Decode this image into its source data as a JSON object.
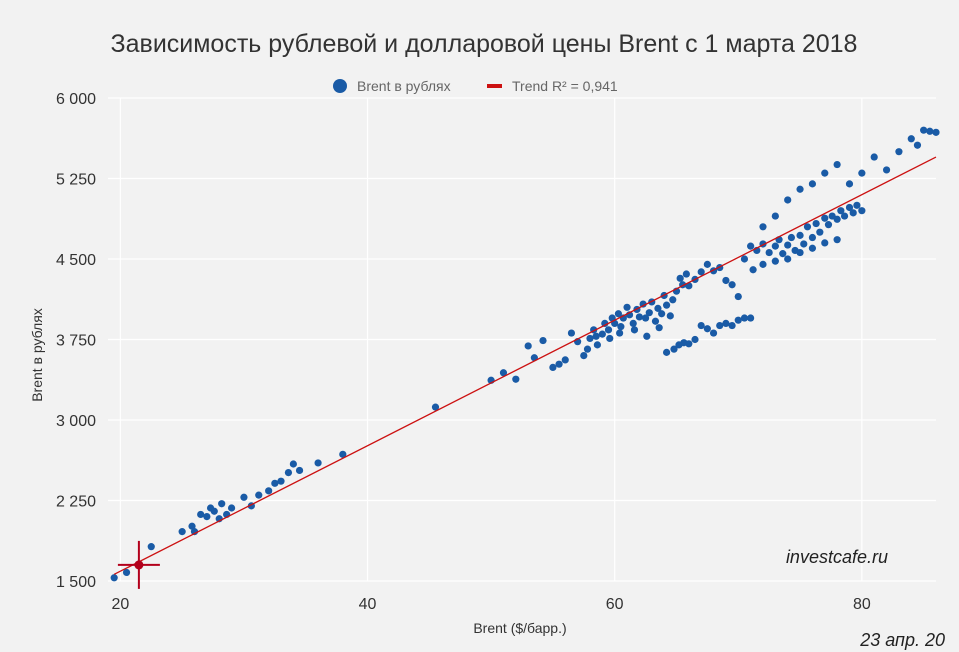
{
  "chart_data": {
    "type": "scatter",
    "title": "Зависимость рублевой и долларовой цены Brent с 1 марта 2018",
    "xlabel": "Brent ($/барр.)",
    "ylabel": "Brent в рублях",
    "xlim": [
      19,
      86
    ],
    "ylim": [
      1500,
      6000
    ],
    "x_ticks": [
      20,
      40,
      60,
      80
    ],
    "x_tick_labels": [
      "20",
      "40",
      "60",
      "80"
    ],
    "y_ticks": [
      1500,
      2250,
      3000,
      3750,
      4500,
      5250,
      6000
    ],
    "y_tick_labels": [
      "1 500",
      "2 250",
      "3 000",
      "3 750",
      "4 500",
      "5 250",
      "6 000"
    ],
    "grid": true,
    "legend_position": "top",
    "series": [
      {
        "name": "Brent в рублях",
        "color": "#1a5ba6",
        "points": [
          [
            19.5,
            1530
          ],
          [
            20.5,
            1580
          ],
          [
            21.5,
            1650
          ],
          [
            22.5,
            1820
          ],
          [
            25,
            1960
          ],
          [
            25.8,
            2010
          ],
          [
            26,
            1960
          ],
          [
            26.5,
            2120
          ],
          [
            27,
            2100
          ],
          [
            27.3,
            2180
          ],
          [
            27.6,
            2150
          ],
          [
            28,
            2080
          ],
          [
            28.2,
            2220
          ],
          [
            28.6,
            2120
          ],
          [
            29,
            2180
          ],
          [
            30,
            2280
          ],
          [
            30.6,
            2200
          ],
          [
            31.2,
            2300
          ],
          [
            32,
            2340
          ],
          [
            32.5,
            2410
          ],
          [
            33,
            2430
          ],
          [
            33.6,
            2510
          ],
          [
            34,
            2590
          ],
          [
            34.5,
            2530
          ],
          [
            36,
            2600
          ],
          [
            38,
            2680
          ],
          [
            45.5,
            3120
          ],
          [
            50,
            3370
          ],
          [
            51,
            3440
          ],
          [
            52,
            3380
          ],
          [
            53,
            3690
          ],
          [
            53.5,
            3580
          ],
          [
            54.2,
            3740
          ],
          [
            55,
            3490
          ],
          [
            55.5,
            3520
          ],
          [
            56,
            3560
          ],
          [
            56.5,
            3810
          ],
          [
            57,
            3730
          ],
          [
            57.5,
            3600
          ],
          [
            57.8,
            3660
          ],
          [
            58,
            3760
          ],
          [
            58.3,
            3840
          ],
          [
            58.6,
            3700
          ],
          [
            59,
            3800
          ],
          [
            59.2,
            3900
          ],
          [
            59.5,
            3840
          ],
          [
            59.8,
            3950
          ],
          [
            60,
            3900
          ],
          [
            60.3,
            3990
          ],
          [
            60.5,
            3870
          ],
          [
            60.7,
            3950
          ],
          [
            61,
            4050
          ],
          [
            61.2,
            3980
          ],
          [
            61.5,
            3900
          ],
          [
            61.8,
            4030
          ],
          [
            62,
            3960
          ],
          [
            62.3,
            4080
          ],
          [
            62.5,
            3950
          ],
          [
            62.8,
            4000
          ],
          [
            63,
            4100
          ],
          [
            63.3,
            3920
          ],
          [
            63.5,
            4040
          ],
          [
            63.8,
            3990
          ],
          [
            64,
            4160
          ],
          [
            64.2,
            4070
          ],
          [
            64.5,
            3970
          ],
          [
            64.7,
            4120
          ],
          [
            65,
            4200
          ],
          [
            65.3,
            4320
          ],
          [
            65.5,
            4260
          ],
          [
            65.8,
            4360
          ],
          [
            66,
            4250
          ],
          [
            66.5,
            4310
          ],
          [
            67,
            4380
          ],
          [
            67.5,
            4450
          ],
          [
            68,
            4390
          ],
          [
            68.5,
            4420
          ],
          [
            69,
            4300
          ],
          [
            69.5,
            4260
          ],
          [
            70,
            4150
          ],
          [
            64.2,
            3630
          ],
          [
            64.8,
            3660
          ],
          [
            65.2,
            3700
          ],
          [
            65.6,
            3720
          ],
          [
            66,
            3710
          ],
          [
            66.5,
            3750
          ],
          [
            67,
            3880
          ],
          [
            67.5,
            3850
          ],
          [
            68,
            3810
          ],
          [
            68.5,
            3880
          ],
          [
            69,
            3900
          ],
          [
            69.5,
            3880
          ],
          [
            70,
            3930
          ],
          [
            70.5,
            3950
          ],
          [
            71,
            3950
          ],
          [
            58.5,
            3780
          ],
          [
            59.6,
            3760
          ],
          [
            60.4,
            3810
          ],
          [
            61.6,
            3840
          ],
          [
            62.6,
            3780
          ],
          [
            63.6,
            3860
          ],
          [
            70.5,
            4500
          ],
          [
            71,
            4620
          ],
          [
            71.5,
            4580
          ],
          [
            72,
            4640
          ],
          [
            72.5,
            4560
          ],
          [
            73,
            4620
          ],
          [
            73.3,
            4680
          ],
          [
            73.6,
            4550
          ],
          [
            74,
            4630
          ],
          [
            74.3,
            4700
          ],
          [
            74.6,
            4580
          ],
          [
            75,
            4720
          ],
          [
            75.3,
            4640
          ],
          [
            75.6,
            4800
          ],
          [
            76,
            4700
          ],
          [
            76.3,
            4830
          ],
          [
            76.6,
            4750
          ],
          [
            77,
            4880
          ],
          [
            77.3,
            4820
          ],
          [
            77.6,
            4900
          ],
          [
            78,
            4870
          ],
          [
            78.3,
            4950
          ],
          [
            78.6,
            4900
          ],
          [
            79,
            4980
          ],
          [
            79.3,
            4930
          ],
          [
            79.6,
            5000
          ],
          [
            80,
            4950
          ],
          [
            71.2,
            4400
          ],
          [
            72,
            4450
          ],
          [
            73,
            4480
          ],
          [
            74,
            4500
          ],
          [
            75,
            4560
          ],
          [
            76,
            4600
          ],
          [
            77,
            4650
          ],
          [
            78,
            4680
          ],
          [
            72,
            4800
          ],
          [
            73,
            4900
          ],
          [
            74,
            5050
          ],
          [
            75,
            5150
          ],
          [
            76,
            5200
          ],
          [
            77,
            5300
          ],
          [
            78,
            5380
          ],
          [
            79,
            5200
          ],
          [
            80,
            5300
          ],
          [
            81,
            5450
          ],
          [
            82,
            5330
          ],
          [
            83,
            5500
          ],
          [
            84,
            5620
          ],
          [
            84.5,
            5560
          ],
          [
            85,
            5700
          ],
          [
            85.5,
            5690
          ],
          [
            86,
            5680
          ]
        ]
      },
      {
        "name": "Trend R² = 0,941",
        "color": "#cc1111",
        "line": [
          [
            19.5,
            1562
          ],
          [
            86,
            5450
          ]
        ]
      }
    ],
    "highlight_point": [
      21.5,
      1650
    ],
    "annotations": [
      "investcafe.ru",
      "23 апр. 20"
    ]
  }
}
